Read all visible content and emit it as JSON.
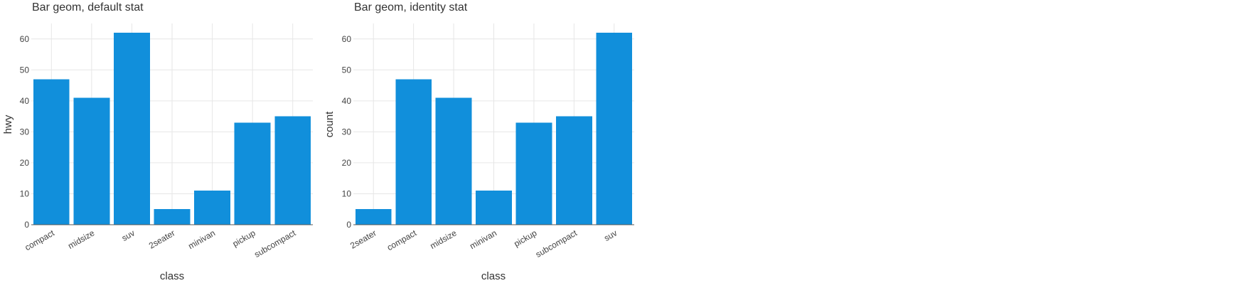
{
  "chart_data": [
    {
      "type": "bar",
      "title": "Bar geom, default stat",
      "xlabel": "class",
      "ylabel": "hwy",
      "categories": [
        "compact",
        "midsize",
        "suv",
        "2seater",
        "minivan",
        "pickup",
        "subcompact"
      ],
      "values": [
        47,
        41,
        62,
        5,
        11,
        33,
        35
      ],
      "ylim": [
        0,
        65
      ],
      "yticks": [
        0,
        10,
        20,
        30,
        40,
        50,
        60
      ],
      "bar_color": "#118fdb",
      "grid": true
    },
    {
      "type": "bar",
      "title": "Bar geom, identity stat",
      "xlabel": "class",
      "ylabel": "count",
      "categories": [
        "2seater",
        "compact",
        "midsize",
        "minivan",
        "pickup",
        "subcompact",
        "suv"
      ],
      "values": [
        5,
        47,
        41,
        11,
        33,
        35,
        62
      ],
      "ylim": [
        0,
        65
      ],
      "yticks": [
        0,
        10,
        20,
        30,
        40,
        50,
        60
      ],
      "bar_color": "#118fdb",
      "grid": true
    }
  ]
}
